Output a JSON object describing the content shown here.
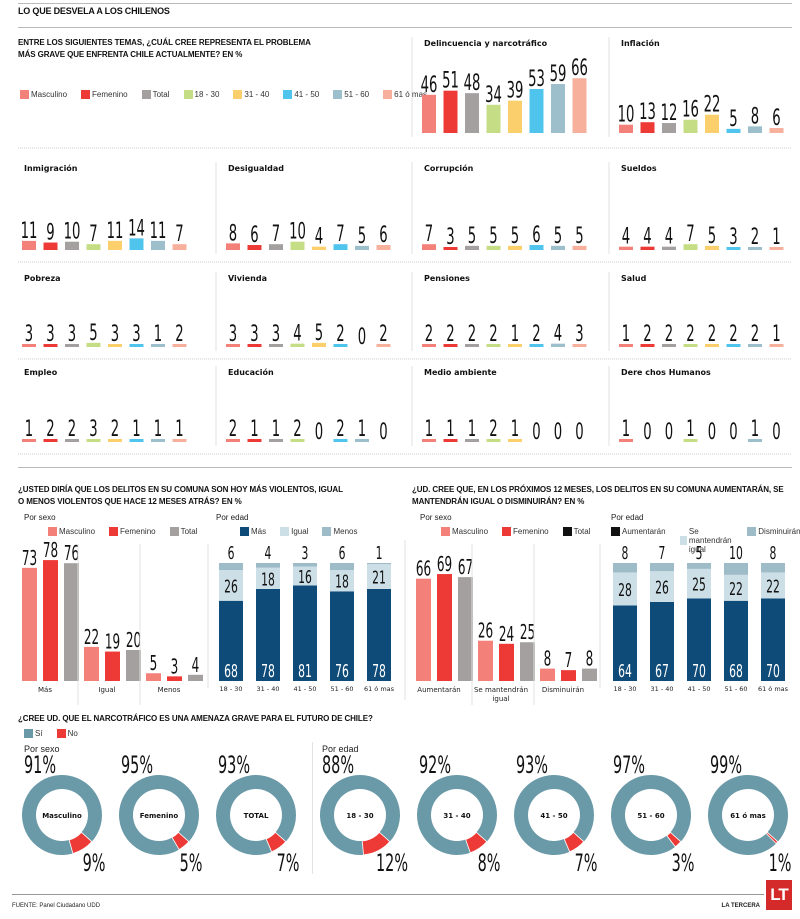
{
  "header": {
    "title": "LO QUE DESVELA A LOS CHILENOS"
  },
  "colors": {
    "masculino": "#f4807a",
    "femenino": "#ee3a36",
    "total": "#a3a09f",
    "r18_30": "#c5de86",
    "r31_40": "#fbcf6b",
    "r41_50": "#4fc4ed",
    "r51_60": "#9dbfcc",
    "r61": "#f7b09c",
    "mas": "#0f4b78",
    "igual": "#cddfe6",
    "menos": "#9dbcc8",
    "si": "#6a9aa8",
    "no": "#ee3a36",
    "black": "#111111"
  },
  "section1": {
    "question": "ENTRE LOS SIGUIENTES TEMAS, ¿CUÁL CREE REPRESENTA EL PROBLEMA MÁS GRAVE QUE ENFRENTA CHILE ACTUALMENTE? EN %",
    "question_line1": "ENTRE LOS SIGUIENTES TEMAS, ¿CUÁL CREE REPRESENTA EL PROBLEMA",
    "question_line2": "MÁS GRAVE QUE ENFRENTA CHILE ACTUALMENTE? EN %",
    "legend": [
      "Masculino",
      "Femenino",
      "Total",
      "18 - 30",
      "31 - 40",
      "41 - 50",
      "51 - 60",
      "61 ó mas"
    ]
  },
  "section2": {
    "question_line1": "¿USTED DIRÍA QUE LOS DELITOS EN SU COMUNA SON HOY MÁS VIOLENTOS, IGUAL",
    "question_line2": "O MENOS VIOLENTOS QUE HACE 12 MESES ATRÁS? EN %",
    "por_sexo": "Por sexo",
    "por_edad": "Por edad",
    "legend_sexo": [
      "Masculino",
      "Femenino",
      "Total"
    ],
    "legend_edad": [
      "Más",
      "Igual",
      "Menos"
    ]
  },
  "section3": {
    "question_line1": "¿UD. CREE QUE, EN LOS PRÓXIMOS 12 MESES, LOS DELITOS EN SU COMUNA AUMENTARÁN, SE",
    "question_line2": "MANTENDRÁN IGUAL O DISMINUIRÁN? EN %",
    "por_sexo": "Por sexo",
    "por_edad": "Por edad",
    "legend_sexo": [
      "Masculino",
      "Femenino",
      "Total"
    ],
    "legend_edad": [
      "Aumentarán",
      "Se mantendrán igual",
      "Disminuirán"
    ]
  },
  "section4": {
    "question": "¿CREE UD. QUE EL NARCOTRÁFICO ES UNA AMENAZA GRAVE PARA EL FUTURO DE CHILE?",
    "legend": [
      "Sí",
      "No"
    ],
    "por_sexo": "Por sexo",
    "por_edad": "Por edad"
  },
  "footer": {
    "source": "FUENTE: Panel Ciudadano UDD",
    "brand": "LA TERCERA",
    "logo": "LT"
  },
  "chart_data": [
    {
      "type": "bar",
      "title": "Problema más grave que enfrenta Chile (%)",
      "categories": [
        "Masculino",
        "Femenino",
        "Total",
        "18 - 30",
        "31 - 40",
        "41 - 50",
        "51 - 60",
        "61 ó mas"
      ],
      "panels": [
        {
          "name": "Delincuencia y narcotráfico",
          "values": [
            46,
            51,
            48,
            34,
            39,
            53,
            59,
            66
          ]
        },
        {
          "name": "Inflación",
          "values": [
            10,
            13,
            12,
            16,
            22,
            5,
            8,
            6
          ]
        },
        {
          "name": "Inmigración",
          "values": [
            11,
            9,
            10,
            7,
            11,
            14,
            11,
            7
          ]
        },
        {
          "name": "Desigualdad",
          "values": [
            8,
            6,
            7,
            10,
            4,
            7,
            5,
            6
          ]
        },
        {
          "name": "Corrupción",
          "values": [
            7,
            3,
            5,
            5,
            5,
            6,
            5,
            5
          ]
        },
        {
          "name": "Sueldos",
          "values": [
            4,
            4,
            4,
            7,
            5,
            3,
            2,
            1
          ]
        },
        {
          "name": "Pobreza",
          "values": [
            3,
            3,
            3,
            5,
            3,
            3,
            1,
            2
          ]
        },
        {
          "name": "Vivienda",
          "values": [
            3,
            3,
            3,
            4,
            5,
            2,
            0,
            2
          ]
        },
        {
          "name": "Pensiones",
          "values": [
            2,
            2,
            2,
            2,
            1,
            2,
            4,
            3
          ]
        },
        {
          "name": "Salud",
          "values": [
            1,
            2,
            2,
            2,
            2,
            2,
            2,
            1
          ]
        },
        {
          "name": "Empleo",
          "values": [
            1,
            2,
            2,
            3,
            2,
            1,
            1,
            1
          ]
        },
        {
          "name": "Educación",
          "values": [
            2,
            1,
            1,
            2,
            0,
            2,
            1,
            0
          ]
        },
        {
          "name": "Medio ambiente",
          "values": [
            1,
            1,
            1,
            2,
            1,
            0,
            0,
            0
          ]
        },
        {
          "name": "Dere chos Humanos",
          "values": [
            1,
            0,
            0,
            1,
            0,
            0,
            1,
            0
          ]
        }
      ]
    },
    {
      "type": "bar",
      "title": "Delitos más violentos, igual o menos - Por sexo (%)",
      "categories": [
        "Más",
        "Igual",
        "Menos"
      ],
      "series": [
        {
          "name": "Masculino",
          "values": [
            73,
            22,
            5
          ]
        },
        {
          "name": "Femenino",
          "values": [
            78,
            19,
            3
          ]
        },
        {
          "name": "Total",
          "values": [
            76,
            20,
            4
          ]
        }
      ]
    },
    {
      "type": "bar",
      "stacked": true,
      "title": "Delitos más violentos, igual o menos - Por edad (%)",
      "categories": [
        "18 - 30",
        "31 - 40",
        "41 - 50",
        "51 - 60",
        "61 ó mas"
      ],
      "series": [
        {
          "name": "Más",
          "values": [
            68,
            78,
            81,
            76,
            78
          ]
        },
        {
          "name": "Igual",
          "values": [
            26,
            18,
            16,
            18,
            21
          ]
        },
        {
          "name": "Menos",
          "values": [
            6,
            4,
            3,
            6,
            1
          ]
        }
      ]
    },
    {
      "type": "bar",
      "title": "Delitos próximos 12 meses - Por sexo (%)",
      "categories": [
        "Aumentarán",
        "Se mantendrán igual",
        "Disminuirán"
      ],
      "series": [
        {
          "name": "Masculino",
          "values": [
            66,
            26,
            8
          ]
        },
        {
          "name": "Femenino",
          "values": [
            69,
            24,
            7
          ]
        },
        {
          "name": "Total",
          "values": [
            67,
            25,
            8
          ]
        }
      ]
    },
    {
      "type": "bar",
      "stacked": true,
      "title": "Delitos próximos 12 meses - Por edad (%)",
      "categories": [
        "18 - 30",
        "31 - 40",
        "41 - 50",
        "51 - 60",
        "61 ó mas"
      ],
      "series": [
        {
          "name": "Aumentarán",
          "values": [
            64,
            67,
            70,
            68,
            70
          ]
        },
        {
          "name": "Se mantendrán igual",
          "values": [
            28,
            26,
            25,
            22,
            22
          ]
        },
        {
          "name": "Disminuirán",
          "values": [
            8,
            7,
            5,
            10,
            8
          ]
        }
      ]
    },
    {
      "type": "pie",
      "donut": true,
      "title": "¿El narcotráfico es una amenaza grave para el futuro de Chile?",
      "groups": [
        {
          "label": "Masculino",
          "group": "Por sexo",
          "si": 91,
          "no": 9
        },
        {
          "label": "Femenino",
          "group": "Por sexo",
          "si": 95,
          "no": 5
        },
        {
          "label": "TOTAL",
          "group": "Por sexo",
          "si": 93,
          "no": 7
        },
        {
          "label": "18 - 30",
          "group": "Por edad",
          "si": 88,
          "no": 12
        },
        {
          "label": "31 - 40",
          "group": "Por edad",
          "si": 92,
          "no": 8
        },
        {
          "label": "41 - 50",
          "group": "Por edad",
          "si": 93,
          "no": 7
        },
        {
          "label": "51 - 60",
          "group": "Por edad",
          "si": 97,
          "no": 3
        },
        {
          "label": "61 ó mas",
          "group": "Por edad",
          "si": 99,
          "no": 1
        }
      ]
    }
  ]
}
